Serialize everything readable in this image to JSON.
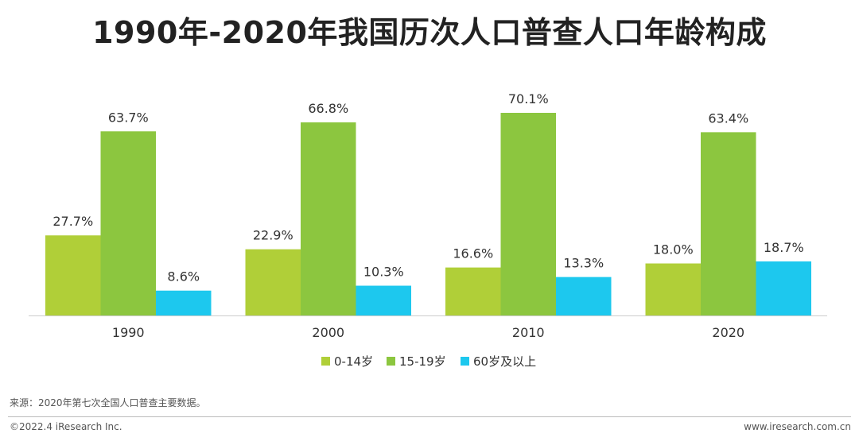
{
  "chart_data": {
    "type": "bar",
    "title": "1990年-2020年我国历次人口普查人口年龄构成",
    "categories": [
      "1990",
      "2000",
      "2010",
      "2020"
    ],
    "series": [
      {
        "name": "0-14岁",
        "color": "#b0cf38",
        "values": [
          27.7,
          22.9,
          16.6,
          18.0
        ],
        "labels": [
          "27.7%",
          "22.9%",
          "16.6%",
          "18.0%"
        ]
      },
      {
        "name": "15-19岁",
        "color": "#8cc63f",
        "values": [
          63.7,
          66.8,
          70.1,
          63.4
        ],
        "labels": [
          "63.7%",
          "66.8%",
          "70.1%",
          "63.4%"
        ]
      },
      {
        "name": "60岁及以上",
        "color": "#1dc8ee",
        "values": [
          8.6,
          10.3,
          13.3,
          18.7
        ],
        "labels": [
          "8.6%",
          "10.3%",
          "13.3%",
          "18.7%"
        ]
      }
    ],
    "ylim": [
      0,
      70.1
    ],
    "xlabel": "",
    "ylabel": "",
    "legend": "bottom-center"
  },
  "source": "来源：2020年第七次全国人口普查主要数据。",
  "footer": {
    "copyright": "©2022.4 iResearch Inc.",
    "website": "www.iresearch.com.cn"
  }
}
